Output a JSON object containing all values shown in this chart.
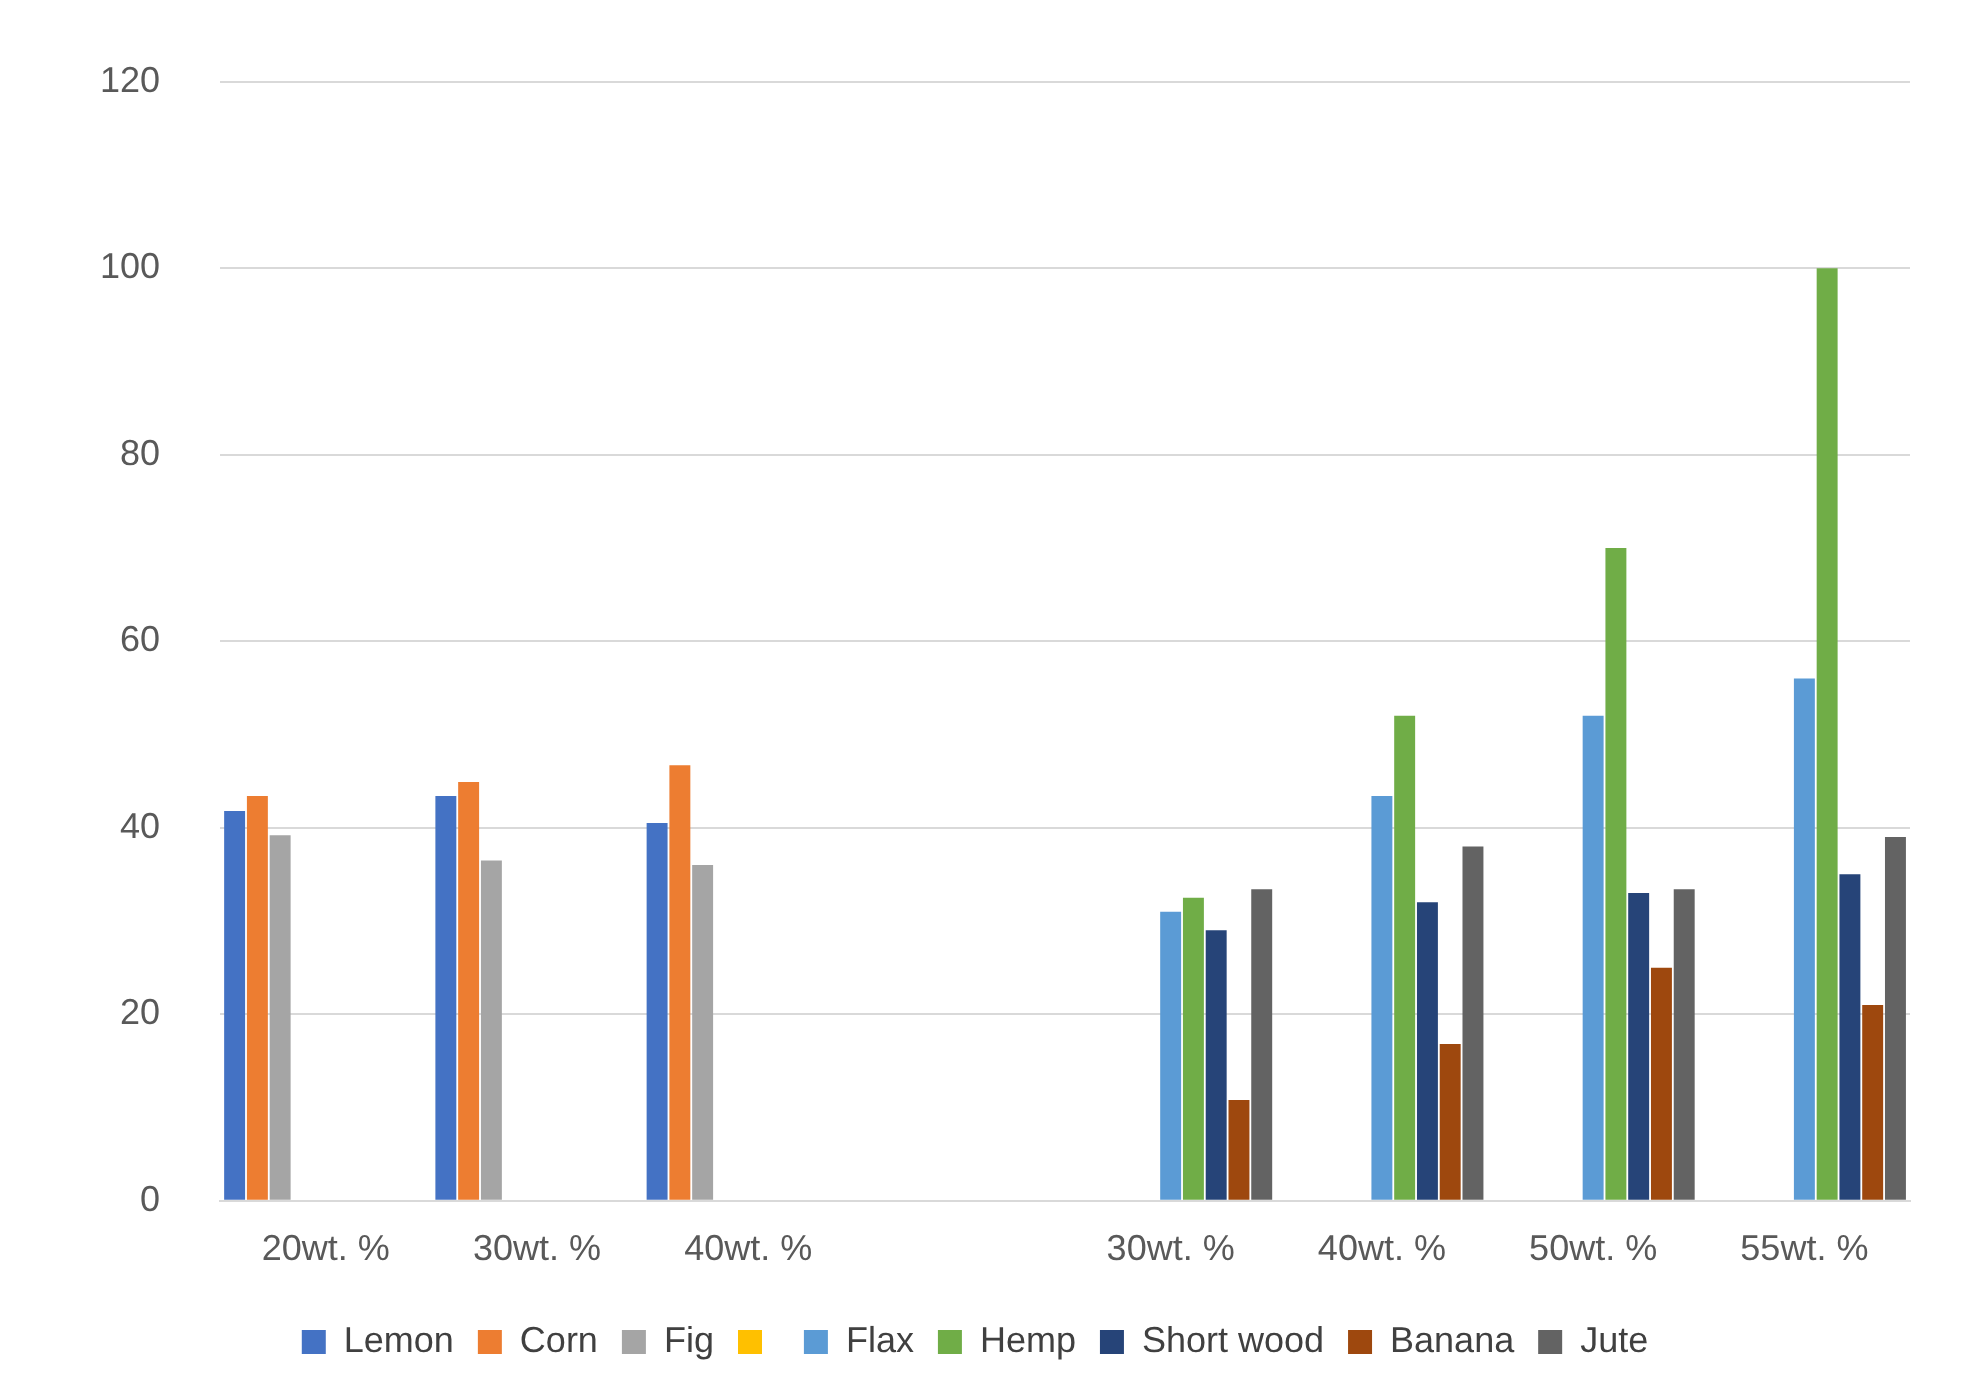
{
  "chart_data": {
    "type": "bar",
    "categories": [
      "20wt. %",
      "30wt. %",
      "40wt. %",
      null,
      "30wt. %",
      "40wt. %",
      "50wt. %",
      "55wt. %"
    ],
    "series": [
      {
        "name": "Lemon",
        "color": "#4472c4",
        "values": [
          41.8,
          43.4,
          40.5,
          null,
          null,
          null,
          null,
          null
        ]
      },
      {
        "name": "Corn",
        "color": "#ed7d31",
        "values": [
          43.4,
          44.9,
          46.7,
          null,
          null,
          null,
          null,
          null
        ]
      },
      {
        "name": "Fig",
        "color": "#a5a5a5",
        "values": [
          39.2,
          36.5,
          36,
          null,
          null,
          null,
          null,
          null
        ]
      },
      {
        "color": "#ffc000",
        "values": [
          null,
          null,
          null,
          null,
          null,
          null,
          null,
          null
        ]
      },
      {
        "name": "Flax",
        "color": "#5b9bd5",
        "values": [
          null,
          null,
          null,
          null,
          31,
          43.4,
          52,
          56
        ]
      },
      {
        "name": "Hemp",
        "color": "#70ad47",
        "values": [
          null,
          null,
          null,
          null,
          32.5,
          52,
          70,
          100
        ]
      },
      {
        "name": "Short wood",
        "color": "#264478",
        "values": [
          null,
          null,
          null,
          null,
          29,
          32,
          33,
          35
        ]
      },
      {
        "name": "Banana",
        "color": "#9e480e",
        "values": [
          null,
          null,
          null,
          null,
          10.8,
          16.8,
          25,
          21
        ]
      },
      {
        "name": "Jute",
        "color": "#636363",
        "values": [
          null,
          null,
          null,
          null,
          33.4,
          38,
          33.4,
          39
        ]
      }
    ],
    "ylim": [
      0,
      120
    ],
    "yticks": [
      0,
      20,
      40,
      60,
      80,
      100,
      120
    ],
    "grid": "y",
    "legend": "bottom"
  }
}
